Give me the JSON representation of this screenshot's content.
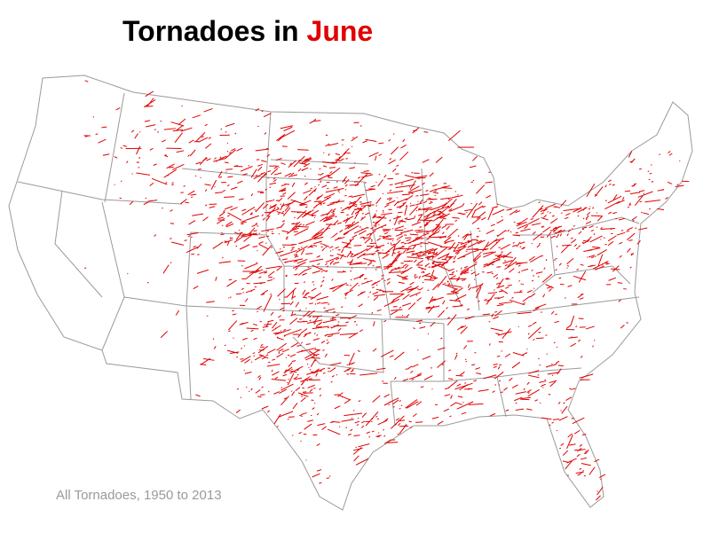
{
  "title": {
    "prefix": "Tornadoes in",
    "month": "June"
  },
  "footnote": "All Tornadoes, 1950 to 2013"
}
